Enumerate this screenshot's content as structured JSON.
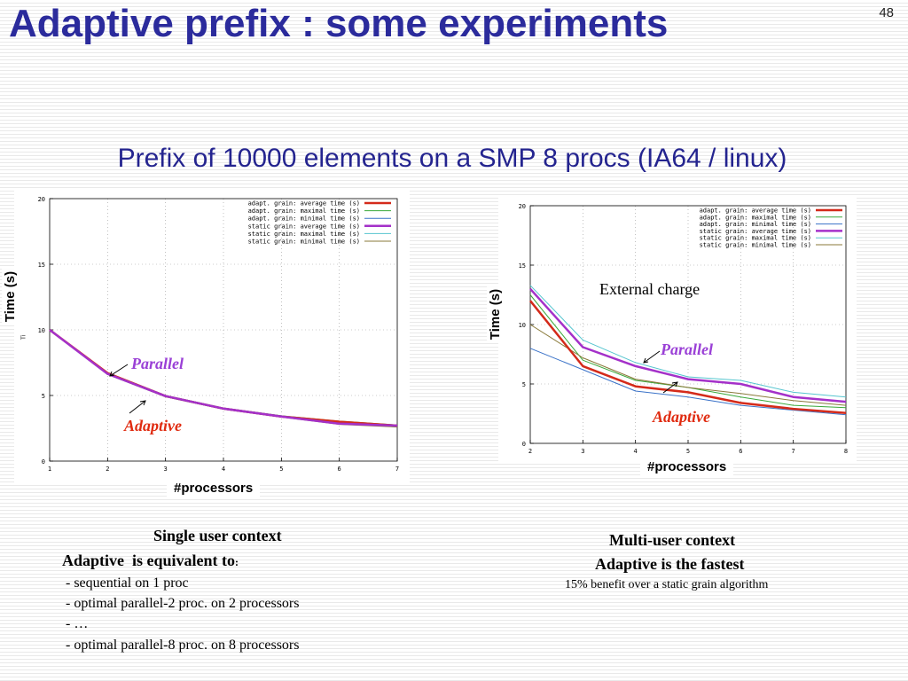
{
  "slide": {
    "title": "Adaptive prefix : some experiments",
    "page_number": "48",
    "subtitle": "Prefix of 10000 elements on a SMP 8 procs (IA64 / linux)"
  },
  "left_panel": {
    "y_axis_label": "Time (s)",
    "x_axis_label": "#processors",
    "small_label": "Ti",
    "annotation_parallel": "Parallel",
    "annotation_adaptive": "Adaptive",
    "context_title": "Single user context",
    "context_subtitle": "Adaptive  is equivalent to",
    "context_subtitle_colon": ":",
    "context_items": [
      "- sequential on 1 proc",
      "- optimal parallel-2 proc. on 2 processors",
      "- …",
      "- optimal parallel-8 proc. on 8 processors"
    ]
  },
  "right_panel": {
    "y_axis_label": "Time (s)",
    "x_axis_label": "#processors",
    "annotation_external": "External charge",
    "annotation_parallel": "Parallel",
    "annotation_adaptive": "Adaptive",
    "context_title": "Multi-user context",
    "context_subtitle": "Adaptive is the fastest",
    "context_note": "15%  benefit over a static grain algorithm"
  },
  "chart_data": [
    {
      "type": "line",
      "xlim": [
        1,
        7
      ],
      "ylim": [
        0,
        20
      ],
      "x_ticks": [
        1,
        2,
        3,
        4,
        5,
        6,
        7
      ],
      "y_ticks": [
        0,
        5,
        10,
        15,
        20
      ],
      "legend_position": "top-right",
      "series": [
        {
          "name": "adapt. grain: average time (s)",
          "color": "#d42a1a",
          "width": 2.5,
          "x": [
            1,
            2,
            3,
            4,
            5,
            6,
            7
          ],
          "y": [
            10,
            6.7,
            4.95,
            4.0,
            3.4,
            3.0,
            2.7
          ]
        },
        {
          "name": "adapt. grain: maximal time (s)",
          "color": "#3aa83a",
          "width": 1,
          "x": [
            1,
            2,
            3,
            4,
            5,
            6,
            7
          ],
          "y": [
            10,
            6.75,
            5.0,
            4.05,
            3.45,
            3.05,
            2.75
          ]
        },
        {
          "name": "adapt. grain: minimal time (s)",
          "color": "#3a72c8",
          "width": 1,
          "x": [
            1,
            2,
            3,
            4,
            5,
            6,
            7
          ],
          "y": [
            10,
            6.6,
            4.9,
            3.95,
            3.35,
            2.9,
            2.6
          ]
        },
        {
          "name": "static grain: average time (s)",
          "color": "#a431c9",
          "width": 2.5,
          "x": [
            1,
            2,
            3,
            4,
            5,
            6,
            7
          ],
          "y": [
            10,
            6.65,
            4.95,
            4.0,
            3.4,
            2.85,
            2.7
          ]
        },
        {
          "name": "static grain: maximal time (s)",
          "color": "#56c5cf",
          "width": 1,
          "x": [
            1,
            2,
            3,
            4,
            5,
            6,
            7
          ],
          "y": [
            10,
            6.7,
            5.0,
            4.05,
            3.45,
            2.95,
            2.75
          ]
        },
        {
          "name": "static grain: minimal time (s)",
          "color": "#8a7a3a",
          "width": 1,
          "x": [
            1,
            2,
            3,
            4,
            5,
            6,
            7
          ],
          "y": [
            10,
            6.6,
            4.9,
            3.95,
            3.35,
            2.8,
            2.6
          ]
        }
      ]
    },
    {
      "type": "line",
      "xlim": [
        2,
        8
      ],
      "ylim": [
        0,
        20
      ],
      "x_ticks": [
        2,
        3,
        4,
        5,
        6,
        7,
        8
      ],
      "y_ticks": [
        0,
        5,
        10,
        15,
        20
      ],
      "legend_position": "top-right",
      "series": [
        {
          "name": "adapt. grain: average time (s)",
          "color": "#d42a1a",
          "width": 2.5,
          "x": [
            2,
            3,
            4,
            5,
            6,
            7,
            8
          ],
          "y": [
            12.0,
            6.5,
            4.8,
            4.3,
            3.4,
            2.9,
            2.55
          ]
        },
        {
          "name": "adapt. grain: maximal time (s)",
          "color": "#3aa83a",
          "width": 1,
          "x": [
            2,
            3,
            4,
            5,
            6,
            7,
            8
          ],
          "y": [
            12.5,
            7.0,
            5.3,
            4.7,
            3.9,
            3.2,
            3.0
          ]
        },
        {
          "name": "adapt. grain: minimal time (s)",
          "color": "#3a72c8",
          "width": 1,
          "x": [
            2,
            3,
            4,
            5,
            6,
            7,
            8
          ],
          "y": [
            8.0,
            6.2,
            4.4,
            3.9,
            3.2,
            2.8,
            2.4
          ]
        },
        {
          "name": "static grain: average time (s)",
          "color": "#a431c9",
          "width": 2.5,
          "x": [
            2,
            3,
            4,
            5,
            6,
            7,
            8
          ],
          "y": [
            13.0,
            8.1,
            6.5,
            5.4,
            5.0,
            3.9,
            3.5
          ]
        },
        {
          "name": "static grain: maximal time (s)",
          "color": "#56c5cf",
          "width": 1,
          "x": [
            2,
            3,
            4,
            5,
            6,
            7,
            8
          ],
          "y": [
            13.3,
            8.7,
            6.8,
            5.6,
            5.3,
            4.3,
            3.9
          ]
        },
        {
          "name": "static grain: minimal time (s)",
          "color": "#8a7a3a",
          "width": 1,
          "x": [
            2,
            3,
            4,
            5,
            6,
            7,
            8
          ],
          "y": [
            10.0,
            7.2,
            5.4,
            4.7,
            4.2,
            3.6,
            3.2
          ]
        }
      ]
    }
  ]
}
